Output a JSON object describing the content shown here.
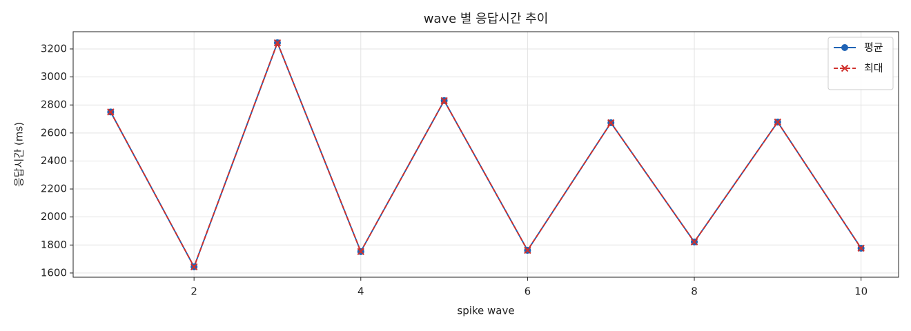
{
  "chart_data": {
    "type": "line",
    "title": "wave 별 응답시간 추이",
    "xlabel": "spike wave",
    "ylabel": "응답시간 (ms)",
    "x": [
      1,
      2,
      3,
      4,
      5,
      6,
      7,
      8,
      9,
      10
    ],
    "series": [
      {
        "name": "평균",
        "color": "#1f63b5",
        "marker": "o",
        "linestyle": "solid",
        "values": [
          2750,
          1644,
          3244,
          1753,
          2831,
          1762,
          2673,
          1822,
          2678,
          1777
        ]
      },
      {
        "name": "최대",
        "color": "#d0312d",
        "marker": "x",
        "linestyle": "dashed",
        "values": [
          2750,
          1644,
          3244,
          1753,
          2831,
          1762,
          2673,
          1822,
          2678,
          1777
        ]
      }
    ],
    "xlim": [
      0.55,
      10.45
    ],
    "ylim": [
      1570,
      3323
    ],
    "xticks": [
      2,
      4,
      6,
      8,
      10
    ],
    "yticks": [
      1600,
      1800,
      2000,
      2200,
      2400,
      2600,
      2800,
      3000,
      3200
    ],
    "grid": true,
    "legend": "upper right"
  }
}
